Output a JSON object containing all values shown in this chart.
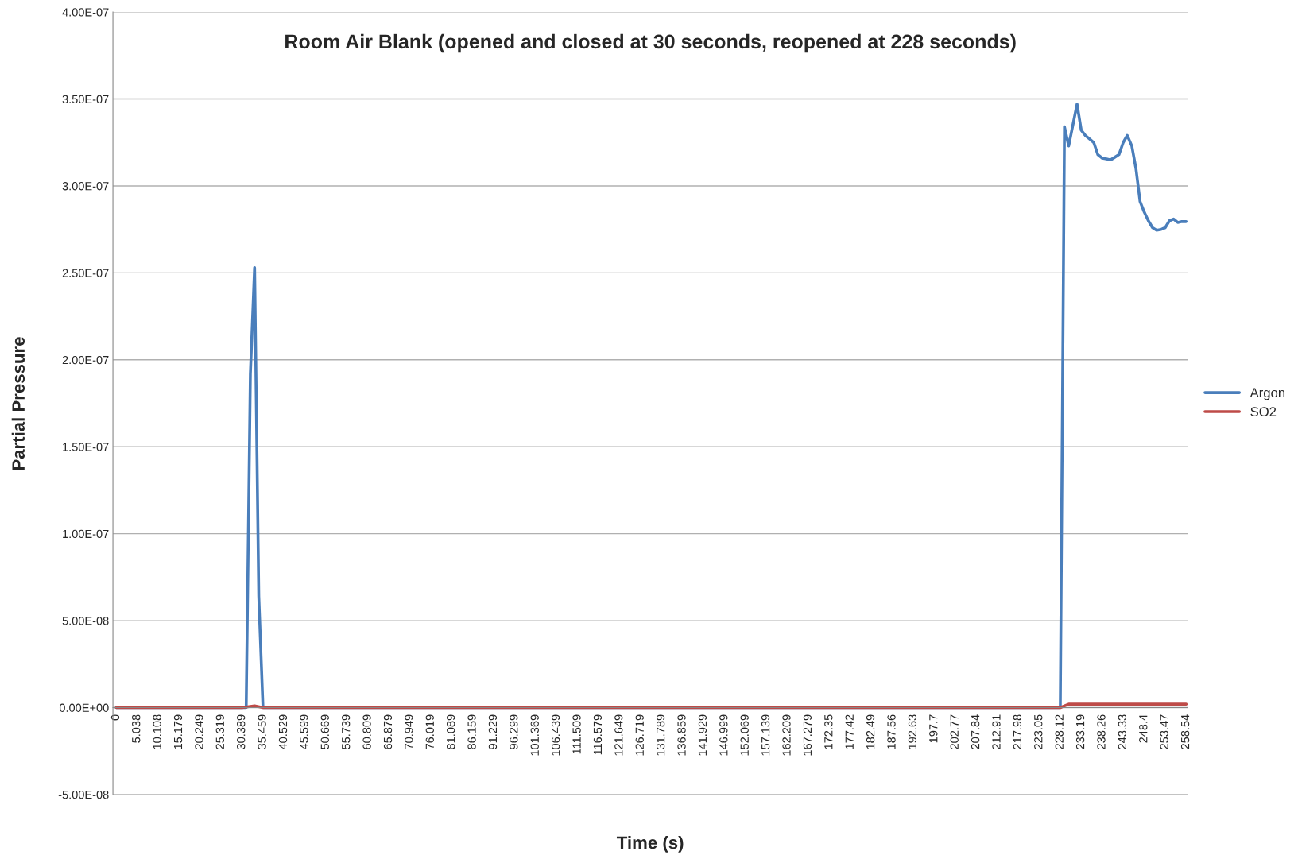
{
  "chart_data": {
    "type": "line",
    "title": "Room Air Blank (opened and closed at 30 seconds, reopened at 228 seconds)",
    "xlabel": "Time (s)",
    "ylabel": "Partial Pressure",
    "series": [
      {
        "name": "Argon",
        "color": "#4a7ebb",
        "x": [
          0,
          31.4,
          32.41,
          33.43,
          34.44,
          35.46,
          228.12,
          229.13,
          230.15,
          232.17,
          233.19,
          234.2,
          235.2,
          236.2,
          237.2,
          238.26,
          239.3,
          240.3,
          241.3,
          242.3,
          243.33,
          244.3,
          245.4,
          246.4,
          247.4,
          248.4,
          249.4,
          250.4,
          251.4,
          252.5,
          253.47,
          254.5,
          255.5,
          256.5,
          257.5,
          258.54
        ],
        "values": [
          0,
          0,
          1.92e-07,
          2.53e-07,
          6.4e-08,
          0,
          0,
          3.34e-07,
          3.23e-07,
          3.47e-07,
          3.32e-07,
          3.29e-07,
          3.27e-07,
          3.25e-07,
          3.18e-07,
          3.16e-07,
          3.155e-07,
          3.15e-07,
          3.165e-07,
          3.18e-07,
          3.25e-07,
          3.29e-07,
          3.23e-07,
          3.1e-07,
          2.91e-07,
          2.85e-07,
          2.8e-07,
          2.76e-07,
          2.745e-07,
          2.75e-07,
          2.76e-07,
          2.8e-07,
          2.81e-07,
          2.79e-07,
          2.795e-07,
          2.795e-07
        ]
      },
      {
        "name": "SO2",
        "color": "#be4b48",
        "x": [
          0,
          30.39,
          33.43,
          35.46,
          228.12,
          230.15,
          258.54
        ],
        "values": [
          0,
          0,
          1e-09,
          0,
          0,
          2e-09,
          2e-09
        ]
      }
    ],
    "xlim": [
      -0.8,
      258.9
    ],
    "xticks": [
      0,
      5.038,
      10.108,
      15.179,
      20.249,
      25.319,
      30.389,
      35.459,
      40.529,
      45.599,
      50.669,
      55.739,
      60.809,
      65.879,
      70.949,
      76.019,
      81.089,
      86.159,
      91.229,
      96.299,
      101.369,
      106.439,
      111.509,
      116.579,
      121.649,
      126.719,
      131.789,
      136.859,
      141.929,
      146.999,
      152.069,
      157.139,
      162.209,
      167.279,
      172.35,
      177.42,
      182.49,
      187.56,
      192.63,
      197.7,
      202.77,
      207.84,
      212.91,
      217.98,
      223.05,
      228.12,
      233.19,
      238.26,
      243.33,
      248.4,
      253.47,
      258.54
    ],
    "ylim": [
      -5e-08,
      4e-07
    ],
    "yticks": [
      {
        "value": -5e-08,
        "label": "-5.00E-08"
      },
      {
        "value": 0,
        "label": "0.00E+00"
      },
      {
        "value": 5e-08,
        "label": "5.00E-08"
      },
      {
        "value": 1e-07,
        "label": "1.00E-07"
      },
      {
        "value": 1.5e-07,
        "label": "1.50E-07"
      },
      {
        "value": 2e-07,
        "label": "2.00E-07"
      },
      {
        "value": 2.5e-07,
        "label": "2.50E-07"
      },
      {
        "value": 3e-07,
        "label": "3.00E-07"
      },
      {
        "value": 3.5e-07,
        "label": "3.50E-07"
      },
      {
        "value": 4e-07,
        "label": "4.00E-07"
      }
    ],
    "grid": "y",
    "legend": "right",
    "marker": "none",
    "line_style": "solid"
  }
}
